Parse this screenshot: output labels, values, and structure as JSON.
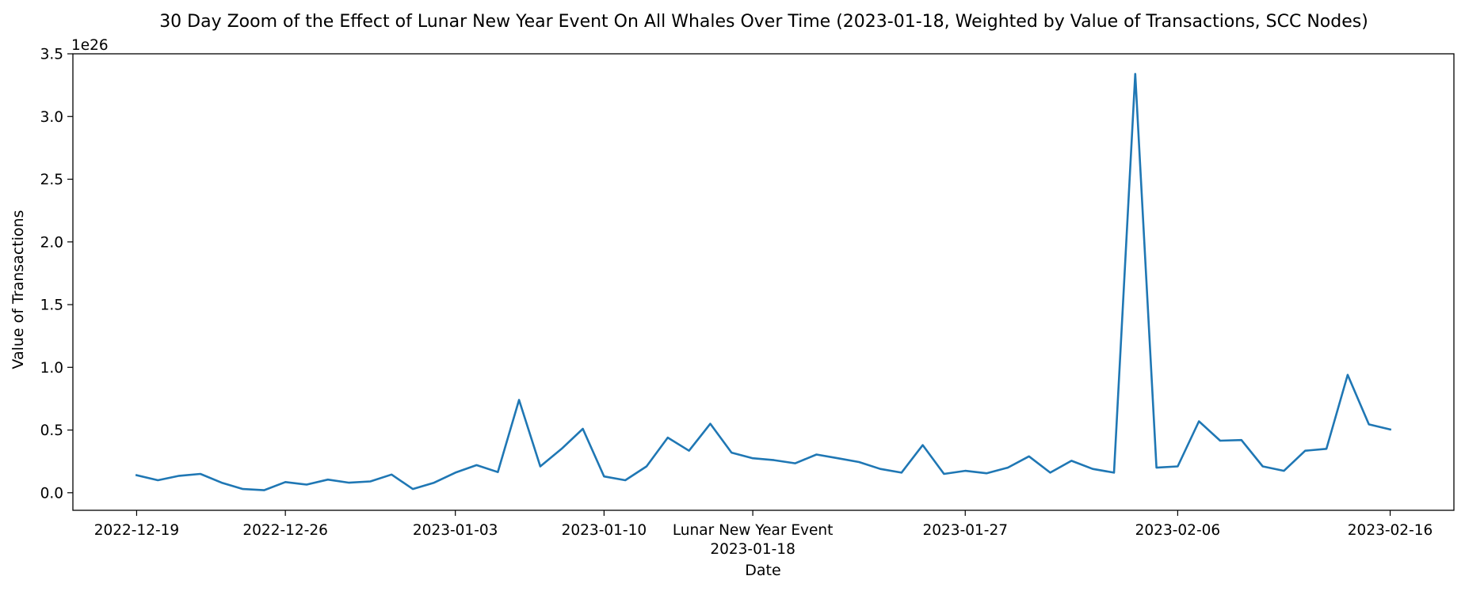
{
  "chart_data": {
    "type": "line",
    "title": "30 Day Zoom of the Effect of Lunar New Year Event On All Whales Over Time (2023-01-18, Weighted by Value of Transactions, SCC Nodes)",
    "xlabel": "Date",
    "ylabel": "Value of Transactions",
    "y_offset_text": "1e26",
    "y_multiplier": 1e+26,
    "ylim": [
      -0.14,
      3.5
    ],
    "xlim": [
      "2022-12-16",
      "2023-02-19"
    ],
    "grid": false,
    "line_color": "#1f77b4",
    "xticks": [
      {
        "date": "2022-12-19",
        "label": "2022-12-19"
      },
      {
        "date": "2022-12-26",
        "label": "2022-12-26"
      },
      {
        "date": "2023-01-03",
        "label": "2023-01-03"
      },
      {
        "date": "2023-01-10",
        "label": "2023-01-10"
      },
      {
        "date": "2023-01-17",
        "label": "Lunar New Year Event",
        "sublabel": "2023-01-18"
      },
      {
        "date": "2023-01-27",
        "label": "2023-01-27"
      },
      {
        "date": "2023-02-06",
        "label": "2023-02-06"
      },
      {
        "date": "2023-02-16",
        "label": "2023-02-16"
      }
    ],
    "yticks": [
      0.0,
      0.5,
      1.0,
      1.5,
      2.0,
      2.5,
      3.0,
      3.5
    ],
    "ytick_labels": [
      "0.0",
      "0.5",
      "1.0",
      "1.5",
      "2.0",
      "2.5",
      "3.0",
      "3.5"
    ],
    "series": [
      {
        "x": [
          "2022-12-19",
          "2022-12-20",
          "2022-12-21",
          "2022-12-22",
          "2022-12-23",
          "2022-12-24",
          "2022-12-25",
          "2022-12-26",
          "2022-12-27",
          "2022-12-28",
          "2022-12-29",
          "2022-12-30",
          "2022-12-31",
          "2023-01-01",
          "2023-01-02",
          "2023-01-03",
          "2023-01-04",
          "2023-01-05",
          "2023-01-06",
          "2023-01-07",
          "2023-01-08",
          "2023-01-09",
          "2023-01-10",
          "2023-01-11",
          "2023-01-12",
          "2023-01-13",
          "2023-01-14",
          "2023-01-15",
          "2023-01-16",
          "2023-01-17",
          "2023-01-18",
          "2023-01-19",
          "2023-01-20",
          "2023-01-21",
          "2023-01-22",
          "2023-01-23",
          "2023-01-24",
          "2023-01-25",
          "2023-01-26",
          "2023-01-27",
          "2023-01-28",
          "2023-01-29",
          "2023-01-30",
          "2023-01-31",
          "2023-02-01",
          "2023-02-02",
          "2023-02-03",
          "2023-02-04",
          "2023-02-05",
          "2023-02-06",
          "2023-02-07",
          "2023-02-08",
          "2023-02-09",
          "2023-02-10",
          "2023-02-11",
          "2023-02-12",
          "2023-02-13",
          "2023-02-14",
          "2023-02-15",
          "2023-02-16"
        ],
        "values": [
          0.14,
          0.1,
          0.135,
          0.15,
          0.08,
          0.03,
          0.02,
          0.085,
          0.065,
          0.105,
          0.08,
          0.09,
          0.145,
          0.03,
          0.08,
          0.16,
          0.22,
          0.165,
          0.74,
          0.21,
          0.35,
          0.51,
          0.13,
          0.1,
          0.21,
          0.44,
          0.335,
          0.55,
          0.32,
          0.275,
          0.26,
          0.235,
          0.305,
          0.275,
          0.245,
          0.19,
          0.16,
          0.38,
          0.15,
          0.175,
          0.155,
          0.2,
          0.29,
          0.16,
          0.255,
          0.19,
          0.16,
          3.34,
          0.2,
          0.21,
          0.57,
          0.415,
          0.42,
          0.21,
          0.175,
          0.335,
          0.35,
          0.94,
          0.545,
          0.505
        ]
      }
    ]
  }
}
